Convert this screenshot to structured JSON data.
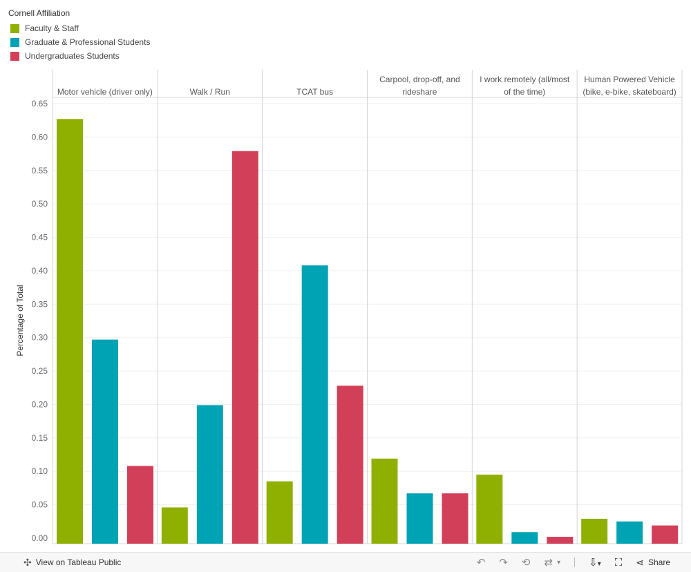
{
  "legend": {
    "title": "Cornell Affiliation",
    "items": [
      {
        "label": "Faculty & Staff",
        "color": "#8fb000"
      },
      {
        "label": "Graduate & Professional Students",
        "color": "#00a3b4"
      },
      {
        "label": "Undergraduates Students",
        "color": "#d23f58"
      }
    ]
  },
  "chart_data": {
    "type": "bar",
    "ylabel": "Percentage of Total",
    "ylim": [
      0,
      0.65
    ],
    "yticks": [
      "0.00",
      "0.05",
      "0.10",
      "0.15",
      "0.20",
      "0.25",
      "0.30",
      "0.35",
      "0.40",
      "0.45",
      "0.50",
      "0.55",
      "0.60",
      "0.65"
    ],
    "categories": [
      [
        "Motor vehicle (driver only)"
      ],
      [
        "Walk / Run"
      ],
      [
        "TCAT bus"
      ],
      [
        "Carpool, drop-off, and",
        "rideshare"
      ],
      [
        "I work remotely (all/most",
        "of the time)"
      ],
      [
        "Human Powered Vehicle",
        "(bike, e-bike, skateboard)"
      ]
    ],
    "series": [
      {
        "name": "Faculty & Staff",
        "values": [
          0.627,
          0.046,
          0.085,
          0.119,
          0.095,
          0.029
        ]
      },
      {
        "name": "Graduate & Professional Students",
        "values": [
          0.297,
          0.199,
          0.408,
          0.067,
          0.009,
          0.025
        ]
      },
      {
        "name": "Undergraduates Students",
        "values": [
          0.108,
          0.579,
          0.228,
          0.067,
          0.002,
          0.019
        ]
      }
    ]
  },
  "toolbar": {
    "view_label": "View on Tableau Public",
    "share_label": "Share"
  }
}
